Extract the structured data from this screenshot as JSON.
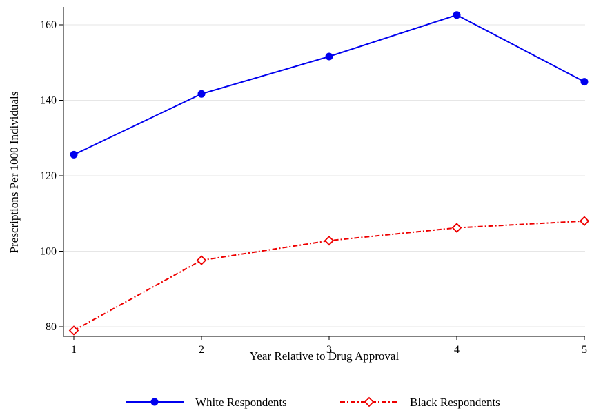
{
  "chart_data": {
    "type": "line",
    "title": "",
    "xlabel": "Year Relative to Drug Approval",
    "ylabel": "Prescriptions Per 1000 Individuals",
    "x": [
      1,
      2,
      3,
      4,
      5
    ],
    "xlim": [
      1,
      5
    ],
    "ylim": [
      77,
      166
    ],
    "yticks": [
      80,
      100,
      120,
      140,
      160
    ],
    "xticks": [
      1,
      2,
      3,
      4,
      5
    ],
    "grid": "horizontal",
    "legend_position": "bottom",
    "series": [
      {
        "name": "White Respondents",
        "values": [
          125.6,
          141.7,
          151.6,
          162.6,
          144.9
        ],
        "color": "#0000ee",
        "marker": "filled-circle",
        "line_style": "solid"
      },
      {
        "name": "Black Respondents",
        "values": [
          79.0,
          97.6,
          102.8,
          106.2,
          108.0
        ],
        "color": "#ee0000",
        "marker": "hollow-diamond",
        "line_style": "dash-dot"
      }
    ]
  }
}
